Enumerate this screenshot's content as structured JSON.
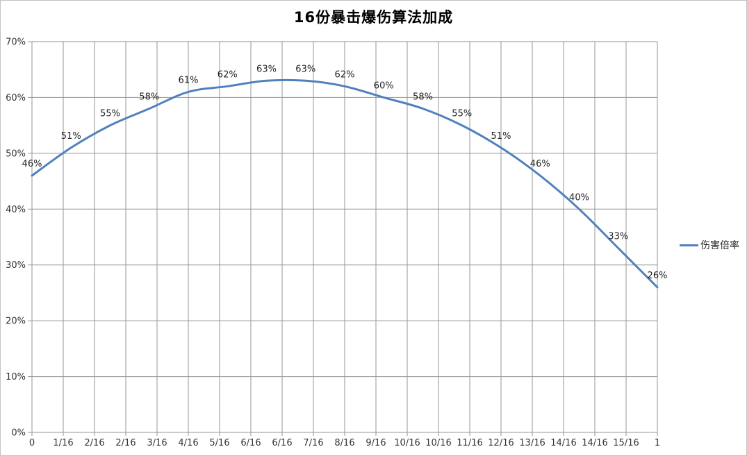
{
  "chart_data": {
    "type": "line",
    "title": "16份暴击爆伤算法加成",
    "smooth": true,
    "grid": true,
    "legend_position": "right",
    "xlim": [
      0,
      1
    ],
    "ylim": [
      0,
      70
    ],
    "y_tick_labels": [
      "0%",
      "10%",
      "20%",
      "30%",
      "40%",
      "50%",
      "60%",
      "70%"
    ],
    "x_tick_labels": [
      "0",
      "1/16",
      "2/16",
      "2/16",
      "3/16",
      "4/16",
      "5/16",
      "6/16",
      "6/16",
      "7/16",
      "8/16",
      "9/16",
      "10/16",
      "10/16",
      "11/16",
      "12/16",
      "13/16",
      "14/16",
      "14/16",
      "15/16",
      "1"
    ],
    "x": [
      0,
      0.0625,
      0.125,
      0.1875,
      0.25,
      0.3125,
      0.375,
      0.4375,
      0.5,
      0.5625,
      0.625,
      0.6875,
      0.75,
      0.8125,
      0.875,
      0.9375,
      1
    ],
    "series": [
      {
        "name": "伤害倍率",
        "values": [
          46,
          51,
          55,
          58,
          61,
          62,
          63,
          63,
          62,
          60,
          58,
          55,
          51,
          46,
          40,
          33,
          26
        ],
        "data_labels": [
          "46%",
          "51%",
          "55%",
          "58%",
          "61%",
          "62%",
          "63%",
          "63%",
          "62%",
          "60%",
          "58%",
          "55%",
          "51%",
          "46%",
          "40%",
          "33%",
          "26%"
        ]
      }
    ]
  },
  "legend": {
    "label": "伤害倍率"
  },
  "colors": {
    "series_line": "#4F81BD",
    "gridline": "#969696",
    "axis_text": "#333333",
    "data_label_text": "#1f1f1f",
    "title_text": "#000000",
    "border": "#c2c2c2"
  }
}
